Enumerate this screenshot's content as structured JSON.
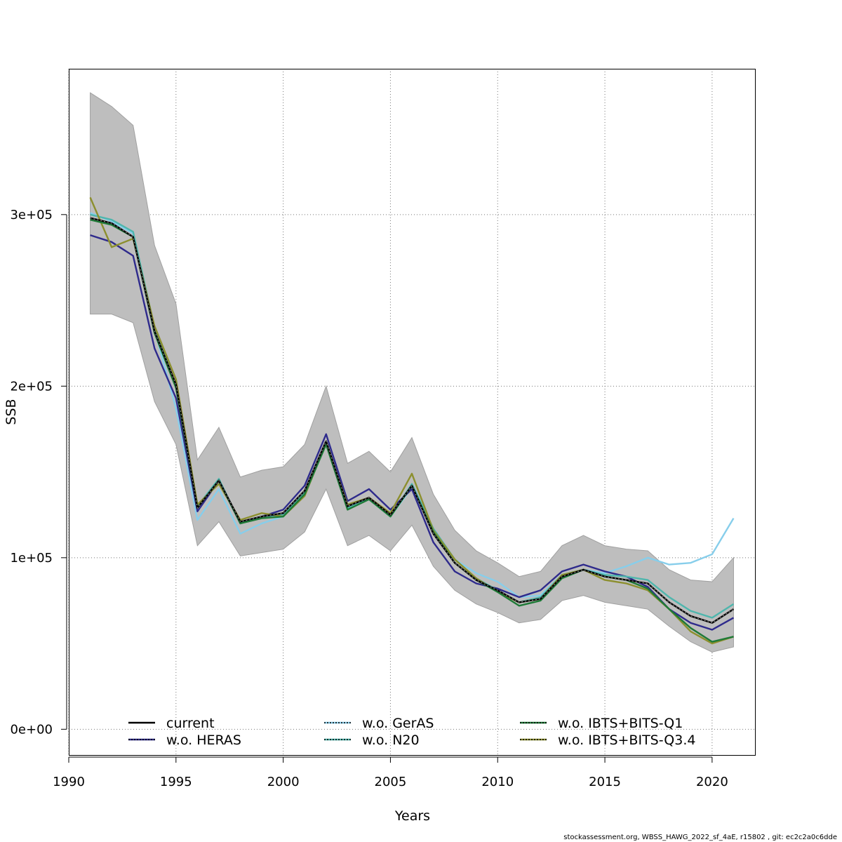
{
  "chart_data": {
    "type": "line",
    "title": "",
    "xlabel": "Years",
    "ylabel": "SSB",
    "xlim": [
      1990,
      2022
    ],
    "ylim": [
      -15000,
      385000
    ],
    "x_ticks": [
      1990,
      1995,
      2000,
      2005,
      2010,
      2015,
      2020
    ],
    "y_ticks": [
      0,
      100000,
      200000,
      300000
    ],
    "y_tick_labels": [
      "0e+00",
      "1e+05",
      "2e+05",
      "3e+05"
    ],
    "grid": true,
    "legend_position": "bottom",
    "x": [
      1991,
      1992,
      1993,
      1994,
      1995,
      1996,
      1997,
      1998,
      1999,
      2000,
      2001,
      2002,
      2003,
      2004,
      2005,
      2006,
      2007,
      2008,
      2009,
      2010,
      2011,
      2012,
      2013,
      2014,
      2015,
      2016,
      2017,
      2018,
      2019,
      2020,
      2021
    ],
    "band": {
      "fill": "#bebebe",
      "upper": [
        371000,
        363000,
        352000,
        282000,
        248000,
        157000,
        176000,
        147000,
        151000,
        153000,
        166000,
        200000,
        155000,
        162000,
        150000,
        170000,
        137000,
        116000,
        104000,
        97000,
        89000,
        92000,
        107000,
        113000,
        107000,
        105000,
        104000,
        93000,
        87000,
        86000,
        100000
      ],
      "lower": [
        242000,
        242000,
        237000,
        191000,
        166000,
        107000,
        121000,
        101000,
        103000,
        105000,
        115000,
        140000,
        107000,
        113000,
        104000,
        119000,
        95000,
        81000,
        73000,
        68000,
        62000,
        64000,
        75000,
        78000,
        74000,
        72000,
        70000,
        60000,
        51000,
        45000,
        48000
      ]
    },
    "series": [
      {
        "name": "current",
        "color": "#000000",
        "dash": "",
        "values": [
          298000,
          295000,
          287000,
          232000,
          201000,
          129000,
          145000,
          121000,
          124000,
          126000,
          139000,
          168000,
          130000,
          135000,
          125000,
          142000,
          114000,
          97000,
          87000,
          81000,
          74000,
          76000,
          89000,
          93000,
          89000,
          87000,
          85000,
          74000,
          66000,
          62000,
          70000
        ]
      },
      {
        "name": "w.o. HERAS",
        "color": "#2e2a8c",
        "dash": "",
        "values": [
          288000,
          284000,
          276000,
          222000,
          193000,
          127000,
          145000,
          120000,
          124000,
          128000,
          142000,
          172000,
          133000,
          140000,
          128000,
          140000,
          109000,
          92000,
          85000,
          82000,
          77000,
          81000,
          92000,
          96000,
          92000,
          89000,
          83000,
          70000,
          62000,
          58000,
          65000
        ]
      },
      {
        "name": "w.o. GerAS",
        "color": "#87ceeb",
        "dash": "",
        "values": [
          301000,
          296000,
          289000,
          233000,
          187000,
          122000,
          140000,
          114000,
          120000,
          124000,
          137000,
          168000,
          129000,
          134000,
          124000,
          141000,
          115000,
          99000,
          91000,
          86000,
          77000,
          78000,
          90000,
          93000,
          91000,
          95000,
          100000,
          96000,
          97000,
          102000,
          123000
        ]
      },
      {
        "name": "w.o. N20",
        "color": "#4fb6ad",
        "dash": "",
        "values": [
          300000,
          297000,
          290000,
          234000,
          200000,
          130000,
          146000,
          120000,
          124000,
          125000,
          138000,
          167000,
          129000,
          135000,
          124000,
          143000,
          117000,
          99000,
          88000,
          81000,
          74000,
          77000,
          90000,
          93000,
          90000,
          89000,
          87000,
          77000,
          69000,
          65000,
          73000
        ]
      },
      {
        "name": "w.o. IBTS+BITS-Q1",
        "color": "#1e7a37",
        "dash": "",
        "values": [
          297000,
          294000,
          287000,
          231000,
          199000,
          129000,
          145000,
          120000,
          123000,
          124000,
          137000,
          166000,
          128000,
          134000,
          124000,
          142000,
          115000,
          97000,
          87000,
          80000,
          72000,
          75000,
          88000,
          93000,
          89000,
          87000,
          82000,
          70000,
          59000,
          51000,
          54000
        ]
      },
      {
        "name": "w.o. IBTS+BITS-Q3.4",
        "color": "#8c8f2e",
        "dash": "",
        "values": [
          310000,
          281000,
          286000,
          235000,
          204000,
          131000,
          143000,
          122000,
          126000,
          124000,
          136000,
          167000,
          131000,
          135000,
          126000,
          149000,
          116000,
          99000,
          88000,
          80000,
          74000,
          76000,
          90000,
          93000,
          87000,
          85000,
          81000,
          70000,
          57000,
          50000,
          54000
        ]
      }
    ],
    "legend": [
      {
        "label": "current",
        "line": "#000000",
        "overlay": ""
      },
      {
        "label": "w.o. HERAS",
        "line": "#2e2a8c",
        "overlay": "#000000"
      },
      {
        "label": "w.o. GerAS",
        "line": "#87ceeb",
        "overlay": "#000000"
      },
      {
        "label": "w.o. N20",
        "line": "#4fb6ad",
        "overlay": "#000000"
      },
      {
        "label": "w.o. IBTS+BITS-Q1",
        "line": "#1e7a37",
        "overlay": "#000000"
      },
      {
        "label": "w.o. IBTS+BITS-Q3.4",
        "line": "#8c8f2e",
        "overlay": "#000000"
      }
    ],
    "footer": "stockassessment.org, WBSS_HAWG_2022_sf_4aE, r15802 , git: ec2c2a0c6dde"
  }
}
